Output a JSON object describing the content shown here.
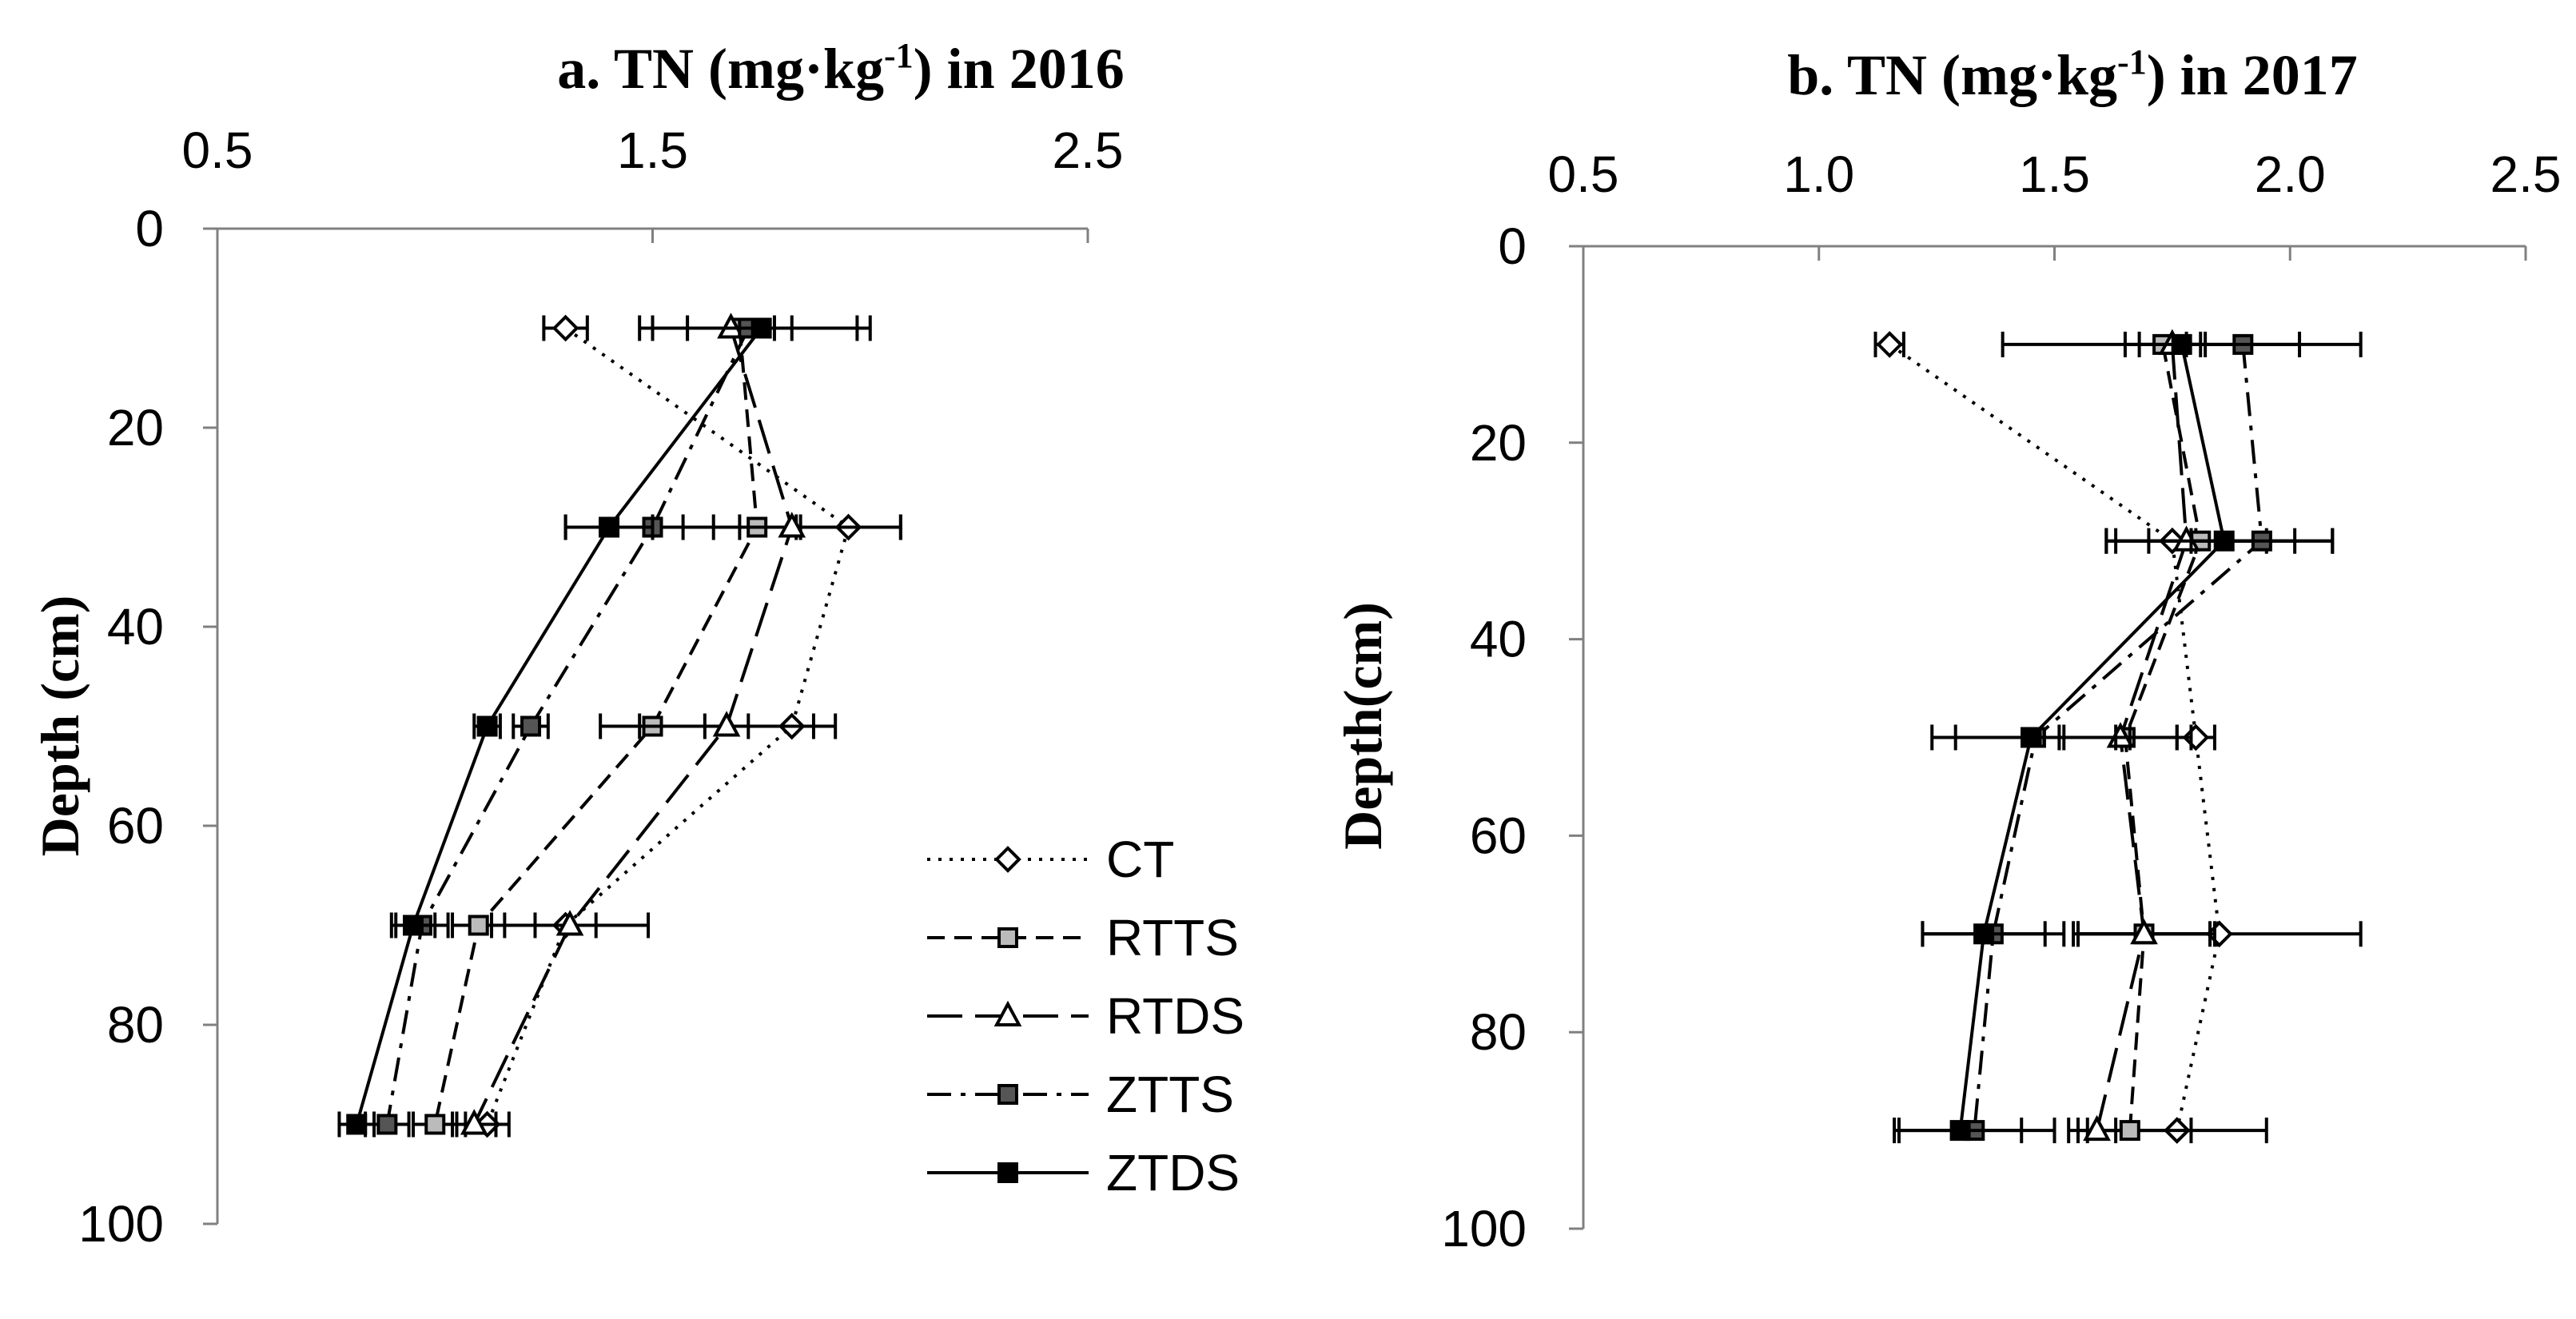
{
  "chart_data": [
    {
      "type": "line",
      "title": {
        "pre": "a. TN (mg·kg",
        "sup": "-1",
        "post": ") in 2016"
      },
      "xlabel": "",
      "ylabel": "Depth (cm)",
      "xlim": [
        0.5,
        2.5
      ],
      "ylim": [
        0,
        100
      ],
      "x_ticks": [
        0.5,
        1.5,
        2.5
      ],
      "x_tick_labels": [
        "0.5",
        "1.5",
        "2.5"
      ],
      "y_ticks": [
        0,
        20,
        40,
        60,
        80,
        100
      ],
      "y_tick_labels": [
        "0",
        "20",
        "40",
        "60",
        "80",
        "100"
      ],
      "depths": [
        10,
        30,
        50,
        70,
        90
      ],
      "series": [
        {
          "name": "CT",
          "style": "dotted",
          "marker": "diamond",
          "x": [
            1.3,
            1.95,
            1.82,
            1.3,
            1.12
          ],
          "err": [
            0.05,
            0.12,
            0.1,
            0.07,
            0.05
          ]
        },
        {
          "name": "RTTS",
          "style": "dashed",
          "marker": "square-x",
          "x": [
            1.7,
            1.74,
            1.5,
            1.1,
            1.0
          ],
          "err": [
            0.12,
            0.1,
            0.12,
            0.06,
            0.05
          ]
        },
        {
          "name": "RTDS",
          "style": "longdash",
          "marker": "triangle",
          "x": [
            1.68,
            1.82,
            1.67,
            1.31,
            1.09
          ],
          "err": [
            0.1,
            0.25,
            0.2,
            0.18,
            0.05
          ]
        },
        {
          "name": "ZTTS",
          "style": "dashdot",
          "marker": "square-dot",
          "x": [
            1.72,
            1.5,
            1.22,
            0.97,
            0.89
          ],
          "err": [
            0.25,
            0.2,
            0.04,
            0.06,
            0.05
          ]
        },
        {
          "name": "ZTDS",
          "style": "solid",
          "marker": "square",
          "x": [
            1.75,
            1.4,
            1.12,
            0.95,
            0.82
          ],
          "err": [
            0.25,
            0.1,
            0.03,
            0.05,
            0.04
          ]
        }
      ],
      "legend": {
        "position": "bottom-right",
        "entries": [
          "CT",
          "RTTS",
          "RTDS",
          "ZTTS",
          "ZTDS"
        ]
      }
    },
    {
      "type": "line",
      "title": {
        "pre": "b. TN (mg·kg",
        "sup": "-1",
        "post": ") in 2017"
      },
      "xlabel": "",
      "ylabel": "Depth(cm)",
      "xlim": [
        0.5,
        2.5
      ],
      "ylim": [
        0,
        100
      ],
      "x_ticks": [
        0.5,
        1.0,
        1.5,
        2.0,
        2.5
      ],
      "x_tick_labels": [
        "0.5",
        "1.0",
        "1.5",
        "2.0",
        "2.5"
      ],
      "y_ticks": [
        0,
        20,
        40,
        60,
        80,
        100
      ],
      "y_tick_labels": [
        "0",
        "20",
        "40",
        "60",
        "80",
        "100"
      ],
      "depths": [
        10,
        30,
        50,
        70,
        90
      ],
      "series": [
        {
          "name": "CT",
          "style": "dotted",
          "marker": "diamond",
          "x": [
            1.15,
            1.75,
            1.8,
            1.85,
            1.76
          ],
          "err": [
            0.03,
            0.05,
            0.04,
            0.3,
            0.19
          ]
        },
        {
          "name": "RTTS",
          "style": "dashed",
          "marker": "square-x",
          "x": [
            1.73,
            1.81,
            1.65,
            1.69,
            1.66
          ],
          "err": [
            0.08,
            0.2,
            0.14,
            0.15,
            0.13
          ]
        },
        {
          "name": "RTDS",
          "style": "longdash",
          "marker": "triangle",
          "x": [
            1.75,
            1.78,
            1.64,
            1.69,
            1.59
          ],
          "err": [
            0.07,
            0.17,
            0.12,
            0.14,
            0.04
          ]
        },
        {
          "name": "ZTTS",
          "style": "dashdot",
          "marker": "square-dot",
          "x": [
            1.9,
            1.94,
            1.46,
            1.37,
            1.33
          ],
          "err": [
            0.12,
            0.15,
            0.17,
            0.15,
            0.17
          ]
        },
        {
          "name": "ZTDS",
          "style": "solid",
          "marker": "square",
          "x": [
            1.77,
            1.86,
            1.45,
            1.35,
            1.3
          ],
          "err": [
            0.38,
            0.23,
            0.21,
            0.13,
            0.13
          ]
        }
      ]
    }
  ]
}
